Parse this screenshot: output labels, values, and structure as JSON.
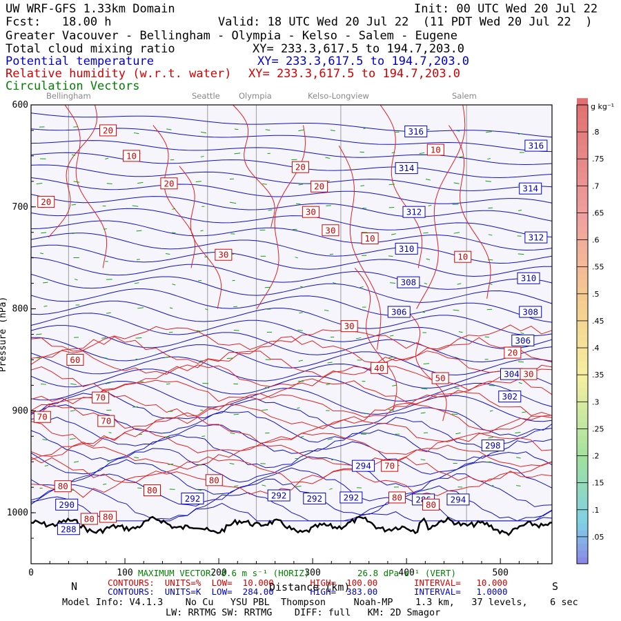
{
  "header": {
    "model_line": "UW WRF-GFS 1.33km Domain",
    "init_line": "Init: 00 UTC Wed 20 Jul 22",
    "fcst_line": "Fcst:   18.00 h",
    "valid_line": "Valid: 18 UTC Wed 20 Jul 22  (11 PDT Wed 20 Jul 22  )",
    "route_line": "Greater Vacouver - Bellingham - Olympia - Kelso - Salem - Eugene",
    "fields": [
      {
        "name": "Total cloud mixing ratio",
        "xy": "XY= 233.3,617.5 to 194.7,203.0",
        "color": "#000000"
      },
      {
        "name": "Potential temperature",
        "xy": "XY= 233.3,617.5 to 194.7,203.0",
        "color": "#0000c8"
      },
      {
        "name": "Relative humidity (w.r.t. water)",
        "xy": "XY= 233.3,617.5 to 194.7,203.0",
        "color": "#d40000"
      },
      {
        "name": "Circulation Vectors",
        "xy": "",
        "color": "#008000"
      }
    ]
  },
  "cities": [
    {
      "name": "Bellingham",
      "km": 40
    },
    {
      "name": "Seattle",
      "km": 188
    },
    {
      "name": "Olympia",
      "km": 240
    },
    {
      "name": "Kelso-Longview",
      "km": 330
    },
    {
      "name": "Salem",
      "km": 464
    }
  ],
  "chart_data": {
    "type": "contour cross-section",
    "x_axis": {
      "label": "Distance (km)",
      "range": [
        0,
        555
      ],
      "ticks": [
        0,
        100,
        200,
        300,
        400,
        500
      ],
      "left_label": "N",
      "right_label": "S"
    },
    "y_axis": {
      "label": "Pressure (hPa)",
      "range": [
        1050,
        600
      ],
      "ticks": [
        600,
        700,
        800,
        900,
        1000
      ]
    },
    "potential_temperature_K": {
      "color": "#0000c8",
      "labels": [
        {
          "value": "316",
          "km": 410,
          "p": 626
        },
        {
          "value": "316",
          "km": 538,
          "p": 640
        },
        {
          "value": "314",
          "km": 400,
          "p": 662
        },
        {
          "value": "314",
          "km": 532,
          "p": 682
        },
        {
          "value": "312",
          "km": 408,
          "p": 705
        },
        {
          "value": "312",
          "km": 538,
          "p": 730
        },
        {
          "value": "310",
          "km": 400,
          "p": 741
        },
        {
          "value": "310",
          "km": 530,
          "p": 770
        },
        {
          "value": "308",
          "km": 402,
          "p": 774
        },
        {
          "value": "308",
          "km": 532,
          "p": 803
        },
        {
          "value": "306",
          "km": 392,
          "p": 803
        },
        {
          "value": "306",
          "km": 524,
          "p": 831
        },
        {
          "value": "304",
          "km": 512,
          "p": 864
        },
        {
          "value": "302",
          "km": 510,
          "p": 886
        },
        {
          "value": "298",
          "km": 492,
          "p": 934
        },
        {
          "value": "294",
          "km": 354,
          "p": 954
        },
        {
          "value": "294",
          "km": 455,
          "p": 987
        },
        {
          "value": "292",
          "km": 172,
          "p": 986
        },
        {
          "value": "292",
          "km": 264,
          "p": 983
        },
        {
          "value": "292",
          "km": 302,
          "p": 986
        },
        {
          "value": "292",
          "km": 341,
          "p": 985
        },
        {
          "value": "290",
          "km": 38,
          "p": 992
        },
        {
          "value": "288",
          "km": 40,
          "p": 1016
        },
        {
          "value": "286",
          "km": 418,
          "p": 987
        }
      ]
    },
    "relative_humidity_pct": {
      "color": "#d40000",
      "labels": [
        {
          "value": "20",
          "km": 82,
          "p": 625
        },
        {
          "value": "10",
          "km": 107,
          "p": 650
        },
        {
          "value": "20",
          "km": 147,
          "p": 677
        },
        {
          "value": "20",
          "km": 16,
          "p": 695
        },
        {
          "value": "20",
          "km": 287,
          "p": 661
        },
        {
          "value": "20",
          "km": 307,
          "p": 680
        },
        {
          "value": "30",
          "km": 298,
          "p": 705
        },
        {
          "value": "30",
          "km": 319,
          "p": 723
        },
        {
          "value": "30",
          "km": 205,
          "p": 747
        },
        {
          "value": "10",
          "km": 361,
          "p": 731
        },
        {
          "value": "10",
          "km": 431,
          "p": 644
        },
        {
          "value": "10",
          "km": 460,
          "p": 749
        },
        {
          "value": "30",
          "km": 339,
          "p": 817
        },
        {
          "value": "60",
          "km": 47,
          "p": 850
        },
        {
          "value": "40",
          "km": 371,
          "p": 858
        },
        {
          "value": "50",
          "km": 436,
          "p": 868
        },
        {
          "value": "20",
          "km": 513,
          "p": 843
        },
        {
          "value": "30",
          "km": 530,
          "p": 864
        },
        {
          "value": "70",
          "km": 74,
          "p": 887
        },
        {
          "value": "70",
          "km": 12,
          "p": 906
        },
        {
          "value": "70",
          "km": 80,
          "p": 910
        },
        {
          "value": "70",
          "km": 382,
          "p": 954
        },
        {
          "value": "80",
          "km": 34,
          "p": 974
        },
        {
          "value": "80",
          "km": 129,
          "p": 978
        },
        {
          "value": "80",
          "km": 195,
          "p": 968
        },
        {
          "value": "80",
          "km": 390,
          "p": 985
        },
        {
          "value": "80",
          "km": 426,
          "p": 992
        },
        {
          "value": "80",
          "km": 62,
          "p": 1006
        },
        {
          "value": "80",
          "km": 82,
          "p": 1004
        }
      ]
    },
    "colorbar": {
      "unit": "g kg⁻¹",
      "tick_labels": [
        ".8",
        ".75",
        ".7",
        ".65",
        ".6",
        ".55",
        ".5",
        ".45",
        ".4",
        ".35",
        ".3",
        ".25",
        ".2",
        ".15",
        ".1",
        ".05"
      ],
      "values": [
        0.8,
        0.75,
        0.7,
        0.65,
        0.6,
        0.55,
        0.5,
        0.45,
        0.4,
        0.35,
        0.3,
        0.25,
        0.2,
        0.15,
        0.1,
        0.05
      ],
      "range": [
        0,
        0.85
      ]
    }
  },
  "footer": {
    "vector_line_a": "MAXIMUM VECTOR: 8.6 m s⁻¹ (HORIZ)",
    "vector_line_b": "26.8 dPa s⁻¹ (VERT)",
    "rh_contours": "CONTOURS:  UNITS=%  LOW=  10.000       HIGH=  100.00       INTERVAL=   10.000",
    "theta_contours": "CONTOURS:  UNITS=K  LOW=  284.00       HIGH=  383.00       INTERVAL=   1.0000",
    "xlabel": "Distance (km)",
    "model_info": "Model Info: V4.1.3    No Cu   YSU PBL  Thompson     Noah-MP    1.3 km,   37 levels,    6 sec",
    "physics_info": "LW: RRTMG SW: RRTMG    DIFF: full   KM: 2D Smagor"
  }
}
